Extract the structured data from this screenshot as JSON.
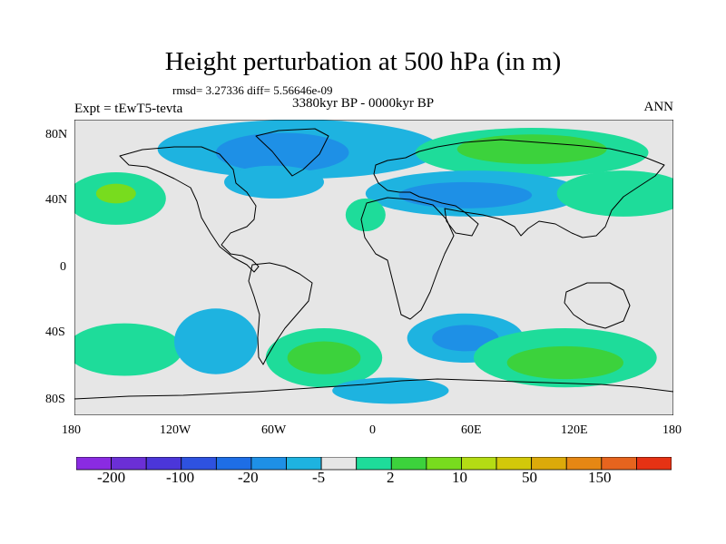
{
  "header": {
    "title": "Height perturbation at 500 hPa (in m)",
    "stats": "rmsd= 3.27336 diff= 5.56646e-09",
    "experiment": "Expt = tEwT5-tevta",
    "period": "3380kyr BP - 0000kyr BP",
    "season": "ANN"
  },
  "axes": {
    "lat_labels": [
      "80N",
      "40N",
      "0",
      "40S",
      "80S"
    ],
    "lon_labels": [
      "180",
      "120W",
      "60W",
      "0",
      "60E",
      "120E",
      "180"
    ]
  },
  "colorbar": {
    "colors": [
      "#8a2be2",
      "#6b2fd6",
      "#4b36d9",
      "#2e52e0",
      "#1e6ee6",
      "#1e90e6",
      "#1eb3e0",
      "#e6e6e6",
      "#1edc9a",
      "#3cd23c",
      "#78dc1e",
      "#b4dc14",
      "#d2c80a",
      "#dcaa0a",
      "#e68714",
      "#e6641e",
      "#e63214"
    ],
    "labels": [
      "-200",
      "-100",
      "-20",
      "-5",
      "2",
      "10",
      "50",
      "150"
    ]
  },
  "map": {
    "type": "filled-contour",
    "field": "500 hPa height perturbation",
    "units": "m",
    "projection": "cylindrical-equidistant",
    "lon_range": [
      -180,
      180
    ],
    "lat_range": [
      -90,
      90
    ],
    "background_color": "#e6e6e6",
    "regions": [
      {
        "name": "north-pacific-positive",
        "color": "#1edc9a",
        "lon": -155,
        "lat": 42,
        "rx": 30,
        "ry": 16
      },
      {
        "name": "north-pacific-core",
        "color": "#78dc1e",
        "lon": -155,
        "lat": 45,
        "rx": 12,
        "ry": 6
      },
      {
        "name": "arctic-greenland-negative",
        "color": "#1eb3e0",
        "lon": -45,
        "lat": 72,
        "rx": 85,
        "ry": 18
      },
      {
        "name": "greenland-core",
        "color": "#1e90e6",
        "lon": -55,
        "lat": 70,
        "rx": 40,
        "ry": 12
      },
      {
        "name": "north-atlantic-negative",
        "color": "#1eb3e0",
        "lon": -60,
        "lat": 52,
        "rx": 30,
        "ry": 10
      },
      {
        "name": "siberia-positive",
        "color": "#1edc9a",
        "lon": 95,
        "lat": 70,
        "rx": 70,
        "ry": 15
      },
      {
        "name": "siberia-core",
        "color": "#3cd23c",
        "lon": 95,
        "lat": 72,
        "rx": 45,
        "ry": 9
      },
      {
        "name": "central-asia-negative",
        "color": "#1eb3e0",
        "lon": 60,
        "lat": 45,
        "rx": 65,
        "ry": 14
      },
      {
        "name": "central-asia-core",
        "color": "#1e90e6",
        "lon": 55,
        "lat": 44,
        "rx": 40,
        "ry": 8
      },
      {
        "name": "east-asia-positive",
        "color": "#1edc9a",
        "lon": 150,
        "lat": 45,
        "rx": 40,
        "ry": 14
      },
      {
        "name": "atlantic-positive",
        "color": "#1edc9a",
        "lon": -5,
        "lat": 32,
        "rx": 12,
        "ry": 10
      },
      {
        "name": "south-pacific-positive",
        "color": "#1edc9a",
        "lon": -150,
        "lat": -50,
        "rx": 35,
        "ry": 16
      },
      {
        "name": "south-pacific-negative",
        "color": "#1eb3e0",
        "lon": -95,
        "lat": -45,
        "rx": 25,
        "ry": 20
      },
      {
        "name": "south-atlantic-positive",
        "color": "#1edc9a",
        "lon": -30,
        "lat": -55,
        "rx": 35,
        "ry": 18
      },
      {
        "name": "south-atlantic-core",
        "color": "#3cd23c",
        "lon": -30,
        "lat": -55,
        "rx": 22,
        "ry": 10
      },
      {
        "name": "south-indian-negative",
        "color": "#1eb3e0",
        "lon": 55,
        "lat": -43,
        "rx": 35,
        "ry": 15
      },
      {
        "name": "south-indian-core",
        "color": "#1e90e6",
        "lon": 55,
        "lat": -43,
        "rx": 20,
        "ry": 8
      },
      {
        "name": "south-ocean-positive",
        "color": "#1edc9a",
        "lon": 115,
        "lat": -55,
        "rx": 55,
        "ry": 18
      },
      {
        "name": "south-ocean-core",
        "color": "#3cd23c",
        "lon": 115,
        "lat": -58,
        "rx": 35,
        "ry": 10
      },
      {
        "name": "antarctic-negative",
        "color": "#1eb3e0",
        "lon": 10,
        "lat": -75,
        "rx": 35,
        "ry": 8
      }
    ]
  }
}
